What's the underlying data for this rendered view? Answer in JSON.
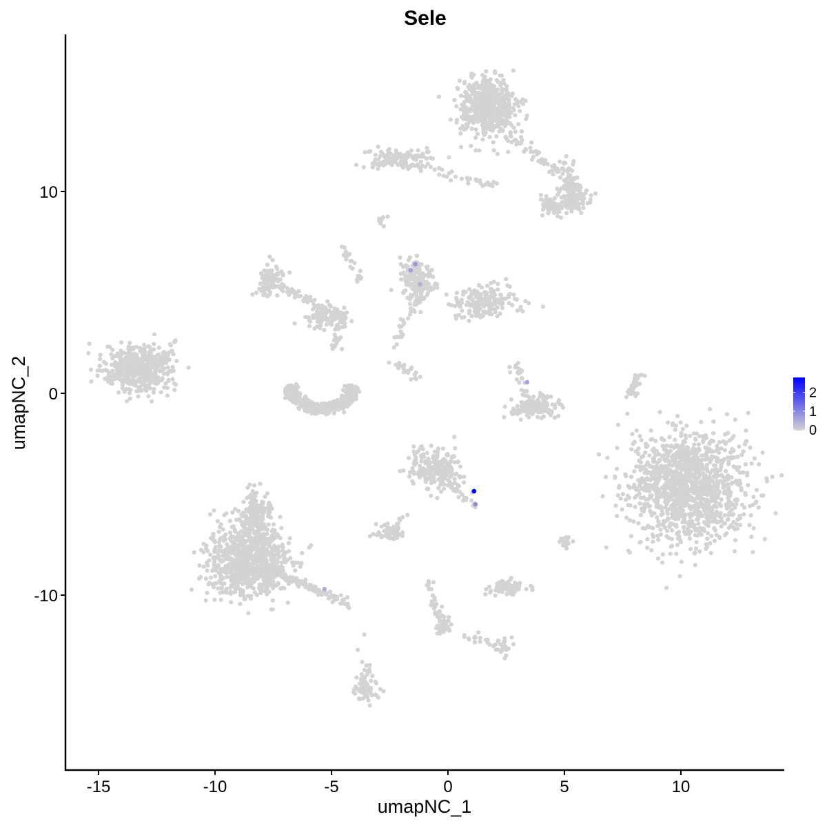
{
  "chart_data": {
    "type": "scatter",
    "title": "Sele",
    "xlabel": "umapNC_1",
    "ylabel": "umapNC_2",
    "xlim": [
      -16.3,
      14.5
    ],
    "ylim": [
      -18.5,
      17.7
    ],
    "xticks": [
      -15,
      -10,
      -5,
      0,
      5,
      10
    ],
    "yticks": [
      -10,
      0,
      10
    ],
    "grid": false,
    "legend": {
      "position": "right",
      "ticks": [
        0,
        1,
        2
      ],
      "range": [
        0,
        2.8
      ],
      "low_color": "#d3d3d3",
      "high_color": "#0000ff"
    },
    "point_color": "#d3d3d3",
    "clusters_approx": [
      {
        "center": [
          1.7,
          14.2
        ],
        "spread": [
          0.6,
          0.7
        ],
        "n": 550
      },
      {
        "center": [
          -2.2,
          11.7
        ],
        "spread": [
          0.7,
          0.25
        ],
        "n": 110
      },
      {
        "center": [
          5.3,
          9.6
        ],
        "spread": [
          0.35,
          0.35
        ],
        "n": 110
      },
      {
        "center": [
          4.4,
          9.2
        ],
        "spread": [
          0.3,
          0.25
        ],
        "n": 50
      },
      {
        "center": [
          -13.3,
          1.2
        ],
        "spread": [
          0.75,
          0.55
        ],
        "n": 450
      },
      {
        "center": [
          -7.6,
          5.6
        ],
        "spread": [
          0.3,
          0.35
        ],
        "n": 120
      },
      {
        "center": [
          -5.2,
          3.8
        ],
        "spread": [
          0.5,
          0.25
        ],
        "n": 80
      },
      {
        "center": [
          -1.4,
          5.6
        ],
        "spread": [
          0.35,
          0.5
        ],
        "n": 150
      },
      {
        "center": [
          1.6,
          4.5
        ],
        "spread": [
          0.7,
          0.35
        ],
        "n": 180
      },
      {
        "center": [
          3.7,
          -0.7
        ],
        "spread": [
          0.6,
          0.25
        ],
        "n": 130
      },
      {
        "center": [
          10.3,
          -4.6
        ],
        "spread": [
          1.25,
          1.35
        ],
        "n": 1300
      },
      {
        "center": [
          -0.6,
          -3.7
        ],
        "spread": [
          0.55,
          0.5
        ],
        "n": 220
      },
      {
        "center": [
          -8.6,
          -8.4
        ],
        "spread": [
          0.85,
          0.9
        ],
        "n": 900
      },
      {
        "center": [
          -8.3,
          -6.0
        ],
        "spread": [
          0.35,
          0.6
        ],
        "n": 150
      },
      {
        "center": [
          -2.5,
          -6.9
        ],
        "spread": [
          0.3,
          0.2
        ],
        "n": 50
      },
      {
        "center": [
          2.5,
          -9.6
        ],
        "spread": [
          0.4,
          0.2
        ],
        "n": 70
      },
      {
        "center": [
          2.4,
          -12.6
        ],
        "spread": [
          0.2,
          0.2
        ],
        "n": 25
      },
      {
        "center": [
          -3.5,
          -14.6
        ],
        "spread": [
          0.25,
          0.3
        ],
        "n": 70
      },
      {
        "center": [
          5.0,
          -7.4
        ],
        "spread": [
          0.15,
          0.15
        ],
        "n": 20
      },
      {
        "center": [
          -0.2,
          -11.5
        ],
        "spread": [
          0.2,
          0.25
        ],
        "n": 30
      }
    ],
    "bowl_approx": {
      "center": [
        -5.4,
        0.3
      ],
      "radius": [
        1.5,
        1.2
      ],
      "n": 450
    },
    "strands_approx": [
      {
        "from": [
          -2.5,
          11.6
        ],
        "to": [
          2.0,
          10.3
        ],
        "n": 50
      },
      {
        "from": [
          2.7,
          12.8
        ],
        "to": [
          5.8,
          10.0
        ],
        "n": 70
      },
      {
        "from": [
          4.9,
          11.7
        ],
        "to": [
          5.5,
          10.2
        ],
        "n": 30
      },
      {
        "from": [
          -12.5,
          1.4
        ],
        "to": [
          -11.6,
          2.6
        ],
        "n": 25
      },
      {
        "from": [
          -7.3,
          5.4
        ],
        "to": [
          -4.5,
          3.7
        ],
        "n": 60
      },
      {
        "from": [
          -4.6,
          3.5
        ],
        "to": [
          -4.8,
          2.1
        ],
        "n": 25
      },
      {
        "from": [
          -4.5,
          7.3
        ],
        "to": [
          -3.7,
          5.5
        ],
        "n": 25
      },
      {
        "from": [
          -2.3,
          2.4
        ],
        "to": [
          -1.2,
          5.0
        ],
        "n": 40
      },
      {
        "from": [
          -2.4,
          1.6
        ],
        "to": [
          -1.2,
          0.7
        ],
        "n": 20
      },
      {
        "from": [
          -0.6,
          -3.8
        ],
        "to": [
          1.2,
          -5.6
        ],
        "n": 30
      },
      {
        "from": [
          -8.0,
          -8.7
        ],
        "to": [
          -4.0,
          -10.5
        ],
        "n": 120
      },
      {
        "from": [
          -3.8,
          -11.7
        ],
        "to": [
          -3.4,
          -14.2
        ],
        "n": 15
      },
      {
        "from": [
          -0.8,
          -9.3
        ],
        "to": [
          -0.2,
          -11.8
        ],
        "n": 40
      },
      {
        "from": [
          0.4,
          -11.9
        ],
        "to": [
          2.2,
          -12.5
        ],
        "n": 20
      },
      {
        "from": [
          7.8,
          -0.2
        ],
        "to": [
          8.3,
          1.0
        ],
        "n": 30
      },
      {
        "from": [
          -3.0,
          8.4
        ],
        "to": [
          -2.8,
          8.7
        ],
        "n": 8
      },
      {
        "from": [
          2.8,
          1.5
        ],
        "to": [
          3.4,
          0.0
        ],
        "n": 25
      },
      {
        "from": [
          -3.2,
          -7.2
        ],
        "to": [
          -1.5,
          -6.0
        ],
        "n": 15
      }
    ],
    "expressing_cells": [
      {
        "x": 1.12,
        "y": -4.85,
        "value": 2.8
      },
      {
        "x": 1.18,
        "y": -5.5,
        "value": 0.9
      },
      {
        "x": -1.4,
        "y": 6.4,
        "value": 0.8
      },
      {
        "x": -1.6,
        "y": 6.1,
        "value": 0.7
      },
      {
        "x": -1.2,
        "y": 5.4,
        "value": 0.5
      },
      {
        "x": 3.4,
        "y": 0.55,
        "value": 0.6
      },
      {
        "x": -5.3,
        "y": -9.7,
        "value": 0.5
      }
    ]
  }
}
